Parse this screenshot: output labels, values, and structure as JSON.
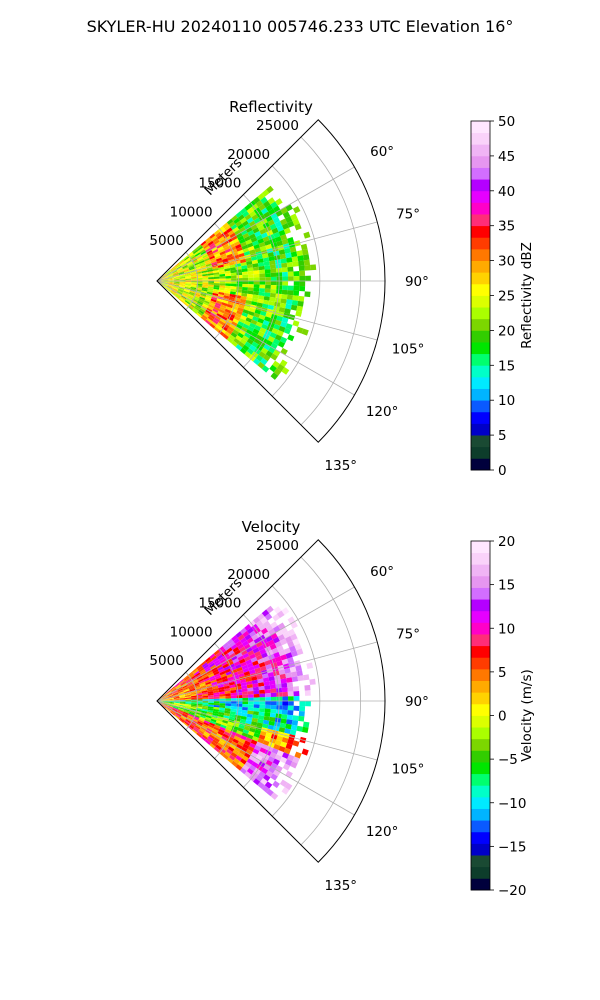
{
  "figure": {
    "title": "SKYLER-HU  20240110  005746.233 UTC Elevation 16°"
  },
  "chart_data": [
    {
      "type": "heatmap",
      "projection": "polar-sector",
      "title": "Reflectivity",
      "radial_label": "Meters",
      "radial_ticks": [
        5000,
        10000,
        15000,
        20000,
        25000
      ],
      "radial_tick_labels": [
        "5000",
        "10000",
        "15000",
        "20000",
        "25000"
      ],
      "rlim": [
        0,
        28000
      ],
      "angular_ticks": [
        60,
        75,
        90,
        105,
        120,
        135
      ],
      "angular_tick_labels": [
        "60°",
        "75°",
        "90°",
        "105°",
        "120°",
        "135°"
      ],
      "angular_range": [
        45,
        135
      ],
      "data_extent": {
        "azimuth": [
          50,
          130
        ],
        "range_max": 18500
      },
      "grid": true,
      "colorbar": {
        "label": "Reflectivity dBZ",
        "range": [
          0,
          50
        ],
        "ticks": [
          0,
          5,
          10,
          15,
          20,
          25,
          30,
          35,
          40,
          45,
          50
        ],
        "tick_labels": [
          "0",
          "5",
          "10",
          "15",
          "20",
          "25",
          "30",
          "35",
          "40",
          "45",
          "50"
        ],
        "colors": [
          "#00003c",
          "#0d3d2b",
          "#1a4a33",
          "#0000c8",
          "#0000ff",
          "#0a5aff",
          "#00b4ff",
          "#00eaff",
          "#00ffc8",
          "#00ff6e",
          "#00e600",
          "#32cd00",
          "#7cd600",
          "#aaff00",
          "#dcff00",
          "#ffff00",
          "#ffd200",
          "#ffaa00",
          "#ff7800",
          "#ff3c00",
          "#ff0000",
          "#ff2d78",
          "#ff00c8",
          "#e600ff",
          "#b400ff",
          "#d26eff",
          "#e696f0",
          "#f0b4f5",
          "#fad2fa",
          "#ffe6ff"
        ]
      }
    },
    {
      "type": "heatmap",
      "projection": "polar-sector",
      "title": "Velocity",
      "radial_label": "Meters",
      "radial_ticks": [
        5000,
        10000,
        15000,
        20000,
        25000
      ],
      "radial_tick_labels": [
        "5000",
        "10000",
        "15000",
        "20000",
        "25000"
      ],
      "rlim": [
        0,
        28000
      ],
      "angular_ticks": [
        60,
        75,
        90,
        105,
        120,
        135
      ],
      "angular_tick_labels": [
        "60°",
        "75°",
        "90°",
        "105°",
        "120°",
        "135°"
      ],
      "angular_range": [
        45,
        135
      ],
      "data_extent": {
        "azimuth": [
          50,
          130
        ],
        "range_max": 18500
      },
      "grid": true,
      "colorbar": {
        "label": "Velocity (m/s)",
        "range": [
          -20,
          20
        ],
        "ticks": [
          -20,
          -15,
          -10,
          -5,
          0,
          5,
          10,
          15,
          20
        ],
        "tick_labels": [
          "−20",
          "−15",
          "−10",
          "−5",
          "0",
          "5",
          "10",
          "15",
          "20"
        ],
        "colors": [
          "#00003c",
          "#0d3d2b",
          "#1a4a33",
          "#0000c8",
          "#0000ff",
          "#0a5aff",
          "#00b4ff",
          "#00eaff",
          "#00ffc8",
          "#00ff6e",
          "#00e600",
          "#32cd00",
          "#7cd600",
          "#aaff00",
          "#dcff00",
          "#ffff00",
          "#ffd200",
          "#ffaa00",
          "#ff7800",
          "#ff3c00",
          "#ff0000",
          "#ff2d78",
          "#ff00c8",
          "#e600ff",
          "#b400ff",
          "#d26eff",
          "#e696f0",
          "#f0b4f5",
          "#fad2fa",
          "#ffe6ff"
        ]
      }
    }
  ]
}
